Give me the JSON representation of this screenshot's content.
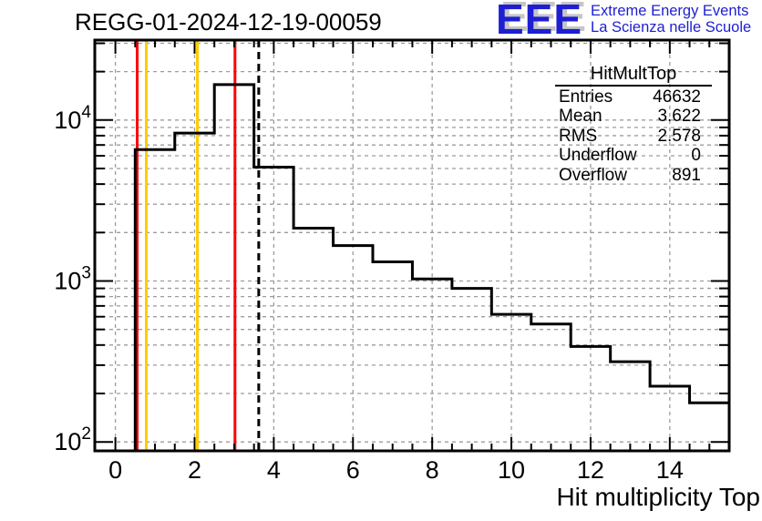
{
  "logo": {
    "letters": "EEE",
    "line1": "Extreme Energy Events",
    "line2": "La Scienza nelle Scuole",
    "color": "#1e1ed2"
  },
  "stats": {
    "title": "HitMultTop",
    "rows": [
      {
        "label": "Entries",
        "value": "46632"
      },
      {
        "label": "Mean",
        "value": "3.622"
      },
      {
        "label": "RMS",
        "value": "2.578"
      },
      {
        "label": "Underflow",
        "value": "0"
      },
      {
        "label": "Overflow",
        "value": "891"
      }
    ]
  },
  "chart_data": {
    "type": "histogram-step",
    "title": "REGG-01-2024-12-19-00059",
    "xlabel": "Hit multiplicity Top",
    "ylabel": "",
    "log_y": true,
    "grid": true,
    "xlim": [
      -0.52,
      15.5
    ],
    "ylim": [
      88,
      31400
    ],
    "x_major_ticks": [
      0,
      2,
      4,
      6,
      8,
      10,
      12,
      14
    ],
    "x_minor_step": 0.5,
    "y_decades": [
      2,
      3,
      4
    ],
    "y_tick_labels": [
      {
        "base": "10",
        "exp": "2"
      },
      {
        "base": "10",
        "exp": "3"
      },
      {
        "base": "10",
        "exp": "4"
      }
    ],
    "bins": {
      "start": 0.5,
      "width": 1,
      "bin_centers": [
        1,
        2,
        3,
        4,
        5,
        6,
        7,
        8,
        9,
        10,
        11,
        12,
        13,
        14,
        15
      ],
      "counts": [
        6550,
        8300,
        16600,
        5100,
        2130,
        1660,
        1315,
        1030,
        900,
        620,
        540,
        392,
        315,
        222,
        175
      ]
    },
    "marker_lines": [
      {
        "name": "red-line-low",
        "x": 0.55,
        "color": "#ff0000",
        "style": "solid"
      },
      {
        "name": "yellow-line-low",
        "x": 0.78,
        "color": "#ffcc00",
        "style": "solid"
      },
      {
        "name": "yellow-line-high",
        "x": 2.07,
        "color": "#ffcc00",
        "style": "solid"
      },
      {
        "name": "red-line-high",
        "x": 3.02,
        "color": "#ff0000",
        "style": "solid"
      },
      {
        "name": "mean-line",
        "x": 3.62,
        "color": "#000000",
        "style": "dashed"
      }
    ],
    "colors": {
      "histogram": "#000000",
      "grid": "#9c9c9c",
      "frame": "#000000"
    }
  }
}
